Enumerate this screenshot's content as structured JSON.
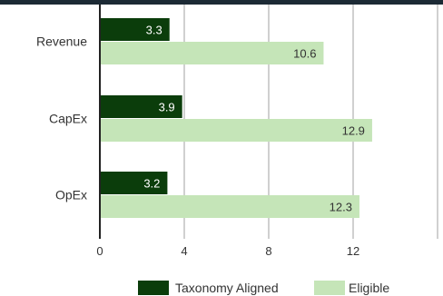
{
  "chart_data": {
    "type": "bar",
    "orientation": "horizontal",
    "categories": [
      "Revenue",
      "CapEx",
      "OpEx"
    ],
    "series": [
      {
        "name": "Taxonomy Aligned",
        "values": [
          3.3,
          3.9,
          3.2
        ],
        "color": "#0b3d0b",
        "label_color": "#ffffff"
      },
      {
        "name": "Eligible",
        "values": [
          10.6,
          12.9,
          12.3
        ],
        "color": "#c5e5b8",
        "label_color": "#333333"
      }
    ],
    "x_ticks": [
      "0",
      "4",
      "8",
      "12"
    ],
    "xlim": [
      0,
      16
    ],
    "grid": "vertical",
    "legend_position": "bottom-right"
  },
  "colors": {
    "top_band": "#1c2a35",
    "gridline": "#d0d0d0",
    "axis": "#222222"
  }
}
